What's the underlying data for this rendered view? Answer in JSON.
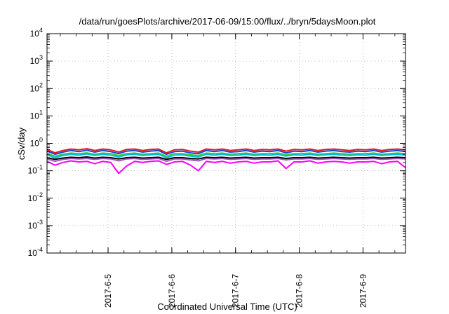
{
  "chart_data": {
    "type": "line",
    "title": "/data/run/goesPlots/archive/2017-06-09/15:00/flux/../bryn/5daysMoon.plot",
    "xlabel": "Coordinated Universal Time (UTC)",
    "ylabel": "cSv/day",
    "yscale": "log",
    "ylim": [
      0.0001,
      10000
    ],
    "xlim": [
      "2017-06-04T01:00",
      "2017-06-09T16:00"
    ],
    "grid": true,
    "legend": "none",
    "x_tick_labels": [
      "2017-6-5",
      "2017-6-6",
      "2017-6-7",
      "2017-6-8",
      "2017-6-9"
    ],
    "y_ticks": [
      {
        "base": "10",
        "exp": "-4",
        "value": 0.0001
      },
      {
        "base": "10",
        "exp": "-3",
        "value": 0.001
      },
      {
        "base": "10",
        "exp": "-2",
        "value": 0.01
      },
      {
        "base": "10",
        "exp": "-1",
        "value": 0.1
      },
      {
        "base": "10",
        "exp": "0",
        "value": 1
      },
      {
        "base": "10",
        "exp": "1",
        "value": 10
      },
      {
        "base": "10",
        "exp": "2",
        "value": 100
      },
      {
        "base": "10",
        "exp": "3",
        "value": 1000
      },
      {
        "base": "10",
        "exp": "4",
        "value": 10000
      }
    ],
    "x": [
      "2017-06-04T01:00",
      "2017-06-04T04:00",
      "2017-06-04T07:00",
      "2017-06-04T10:00",
      "2017-06-04T13:00",
      "2017-06-04T16:00",
      "2017-06-04T19:00",
      "2017-06-04T22:00",
      "2017-06-05T01:00",
      "2017-06-05T04:00",
      "2017-06-05T07:00",
      "2017-06-05T10:00",
      "2017-06-05T13:00",
      "2017-06-05T16:00",
      "2017-06-05T19:00",
      "2017-06-05T22:00",
      "2017-06-06T01:00",
      "2017-06-06T04:00",
      "2017-06-06T07:00",
      "2017-06-06T10:00",
      "2017-06-06T13:00",
      "2017-06-06T16:00",
      "2017-06-06T19:00",
      "2017-06-06T22:00",
      "2017-06-07T01:00",
      "2017-06-07T04:00",
      "2017-06-07T07:00",
      "2017-06-07T10:00",
      "2017-06-07T13:00",
      "2017-06-07T16:00",
      "2017-06-07T19:00",
      "2017-06-07T22:00",
      "2017-06-08T01:00",
      "2017-06-08T04:00",
      "2017-06-08T07:00",
      "2017-06-08T10:00",
      "2017-06-08T13:00",
      "2017-06-08T16:00",
      "2017-06-08T19:00",
      "2017-06-08T22:00",
      "2017-06-09T01:00",
      "2017-06-09T04:00",
      "2017-06-09T07:00",
      "2017-06-09T10:00",
      "2017-06-09T13:00",
      "2017-06-09T16:00"
    ],
    "series": [
      {
        "color": "#e41a1c",
        "values": [
          0.6,
          0.45,
          0.55,
          0.62,
          0.58,
          0.64,
          0.55,
          0.62,
          0.58,
          0.48,
          0.6,
          0.62,
          0.55,
          0.6,
          0.62,
          0.45,
          0.58,
          0.6,
          0.52,
          0.48,
          0.62,
          0.58,
          0.62,
          0.55,
          0.58,
          0.62,
          0.55,
          0.6,
          0.58,
          0.62,
          0.52,
          0.6,
          0.58,
          0.62,
          0.55,
          0.6,
          0.62,
          0.58,
          0.55,
          0.6,
          0.58,
          0.62,
          0.55,
          0.6,
          0.62,
          0.58
        ]
      },
      {
        "color": "#1f3fd6",
        "values": [
          0.52,
          0.4,
          0.48,
          0.55,
          0.5,
          0.56,
          0.48,
          0.55,
          0.5,
          0.42,
          0.52,
          0.55,
          0.48,
          0.52,
          0.55,
          0.4,
          0.5,
          0.52,
          0.45,
          0.42,
          0.55,
          0.5,
          0.55,
          0.48,
          0.5,
          0.55,
          0.48,
          0.52,
          0.5,
          0.55,
          0.45,
          0.52,
          0.5,
          0.55,
          0.48,
          0.52,
          0.55,
          0.5,
          0.48,
          0.52,
          0.5,
          0.55,
          0.48,
          0.52,
          0.55,
          0.5
        ]
      },
      {
        "color": "#2ecc40",
        "values": [
          0.42,
          0.34,
          0.4,
          0.44,
          0.42,
          0.45,
          0.4,
          0.44,
          0.42,
          0.36,
          0.42,
          0.44,
          0.4,
          0.42,
          0.44,
          0.34,
          0.42,
          0.42,
          0.38,
          0.36,
          0.44,
          0.42,
          0.44,
          0.4,
          0.42,
          0.44,
          0.4,
          0.42,
          0.42,
          0.44,
          0.38,
          0.42,
          0.42,
          0.44,
          0.4,
          0.42,
          0.44,
          0.42,
          0.4,
          0.42,
          0.42,
          0.44,
          0.4,
          0.42,
          0.44,
          0.42
        ]
      },
      {
        "color": "#00bcd4",
        "values": [
          0.38,
          0.3,
          0.36,
          0.4,
          0.37,
          0.41,
          0.36,
          0.4,
          0.37,
          0.32,
          0.38,
          0.4,
          0.36,
          0.38,
          0.4,
          0.3,
          0.37,
          0.38,
          0.34,
          0.32,
          0.4,
          0.37,
          0.4,
          0.36,
          0.37,
          0.4,
          0.36,
          0.38,
          0.37,
          0.4,
          0.34,
          0.38,
          0.37,
          0.4,
          0.36,
          0.38,
          0.4,
          0.37,
          0.36,
          0.38,
          0.37,
          0.4,
          0.36,
          0.38,
          0.4,
          0.37
        ]
      },
      {
        "color": "#000000",
        "values": [
          0.3,
          0.26,
          0.29,
          0.31,
          0.3,
          0.32,
          0.29,
          0.31,
          0.3,
          0.27,
          0.3,
          0.31,
          0.29,
          0.3,
          0.31,
          0.26,
          0.3,
          0.3,
          0.28,
          0.27,
          0.31,
          0.3,
          0.31,
          0.29,
          0.3,
          0.31,
          0.29,
          0.3,
          0.3,
          0.31,
          0.28,
          0.3,
          0.3,
          0.31,
          0.29,
          0.3,
          0.31,
          0.3,
          0.29,
          0.3,
          0.3,
          0.31,
          0.29,
          0.3,
          0.31,
          0.3
        ]
      },
      {
        "color": "#9b59b6",
        "values": [
          0.27,
          0.22,
          0.26,
          0.28,
          0.27,
          0.28,
          0.26,
          0.28,
          0.27,
          0.23,
          0.27,
          0.28,
          0.26,
          0.27,
          0.28,
          0.22,
          0.27,
          0.27,
          0.25,
          0.23,
          0.28,
          0.27,
          0.28,
          0.26,
          0.27,
          0.28,
          0.26,
          0.27,
          0.27,
          0.28,
          0.25,
          0.27,
          0.27,
          0.28,
          0.26,
          0.27,
          0.28,
          0.27,
          0.26,
          0.27,
          0.27,
          0.28,
          0.26,
          0.27,
          0.28,
          0.27
        ]
      },
      {
        "color": "#ff00ff",
        "values": [
          0.22,
          0.16,
          0.2,
          0.23,
          0.21,
          0.22,
          0.18,
          0.22,
          0.2,
          0.08,
          0.15,
          0.22,
          0.2,
          0.22,
          0.23,
          0.17,
          0.21,
          0.22,
          0.16,
          0.1,
          0.22,
          0.2,
          0.22,
          0.19,
          0.21,
          0.22,
          0.19,
          0.21,
          0.21,
          0.23,
          0.12,
          0.21,
          0.21,
          0.23,
          0.19,
          0.21,
          0.22,
          0.21,
          0.19,
          0.21,
          0.21,
          0.22,
          0.18,
          0.21,
          0.22,
          0.13
        ]
      }
    ]
  }
}
